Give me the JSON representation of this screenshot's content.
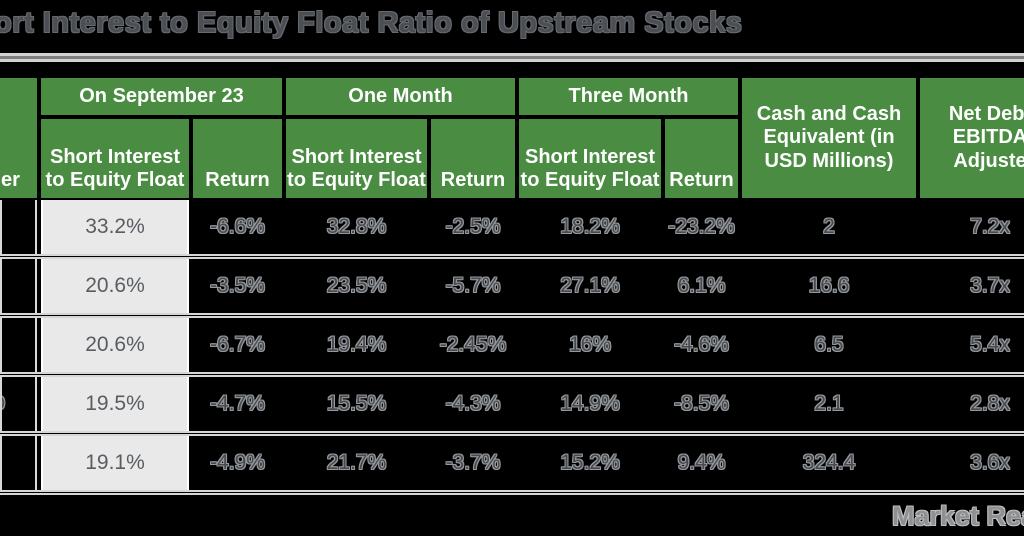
{
  "title": "ort Interest to Equity Float Ratio of Upstream Stocks",
  "watermark": "Market Rea",
  "colors": {
    "page_bg": "#000000",
    "header_green": "#4a8c42",
    "header_text": "#ffffff",
    "gray_cell_bg": "#e9e9e9",
    "gray_cell_text": "#595d62",
    "ghost_text_fill": "#464a4f",
    "ghost_text_outline": "#96999c",
    "divider_light": "#d2d2d2",
    "divider_dark": "#7e7e7e"
  },
  "header": {
    "ticker": "er",
    "groups": [
      "On September 23",
      "One Month",
      "Three Month"
    ],
    "si_label": "Short Interest to Equity Float",
    "return_label": "Return",
    "cash_label": "Cash and Cash Equivalent (in USD Millions)",
    "net_debt_label": "Net Debt\nEBITDA\nAdjuste"
  },
  "chart_data": {
    "type": "table",
    "title": "ort Interest to Equity Float Ratio of Upstream Stocks",
    "columns": [
      "er",
      "Short Interest to Equity Float (On September 23)",
      "Return (On September 23)",
      "Short Interest to Equity Float (One Month)",
      "Return (One Month)",
      "Short Interest to Equity Float (Three Month)",
      "Return (Three Month)",
      "Cash and Cash Equivalent (in USD Millions)",
      "Net Debt EBITDA Adjuste"
    ],
    "rows": [
      [
        "",
        "33.2%",
        "-6.6%",
        "32.8%",
        "-2.5%",
        "18.2%",
        "-23.2%",
        "2",
        "7.2x"
      ],
      [
        "",
        "20.6%",
        "-3.5%",
        "23.5%",
        "-5.7%",
        "27.1%",
        "6.1%",
        "16.6",
        "3.7x"
      ],
      [
        "",
        "20.6%",
        "-6.7%",
        "19.4%",
        "-2.45%",
        "16%",
        "-4.6%",
        "6.5",
        "5.4x"
      ],
      [
        "O",
        "19.5%",
        "-4.7%",
        "15.5%",
        "-4.3%",
        "14.9%",
        "-8.5%",
        "2.1",
        "2.8x"
      ],
      [
        "",
        "19.1%",
        "-4.9%",
        "21.7%",
        "-3.7%",
        "15.2%",
        "9.4%",
        "324.4",
        "3.6x"
      ]
    ]
  }
}
